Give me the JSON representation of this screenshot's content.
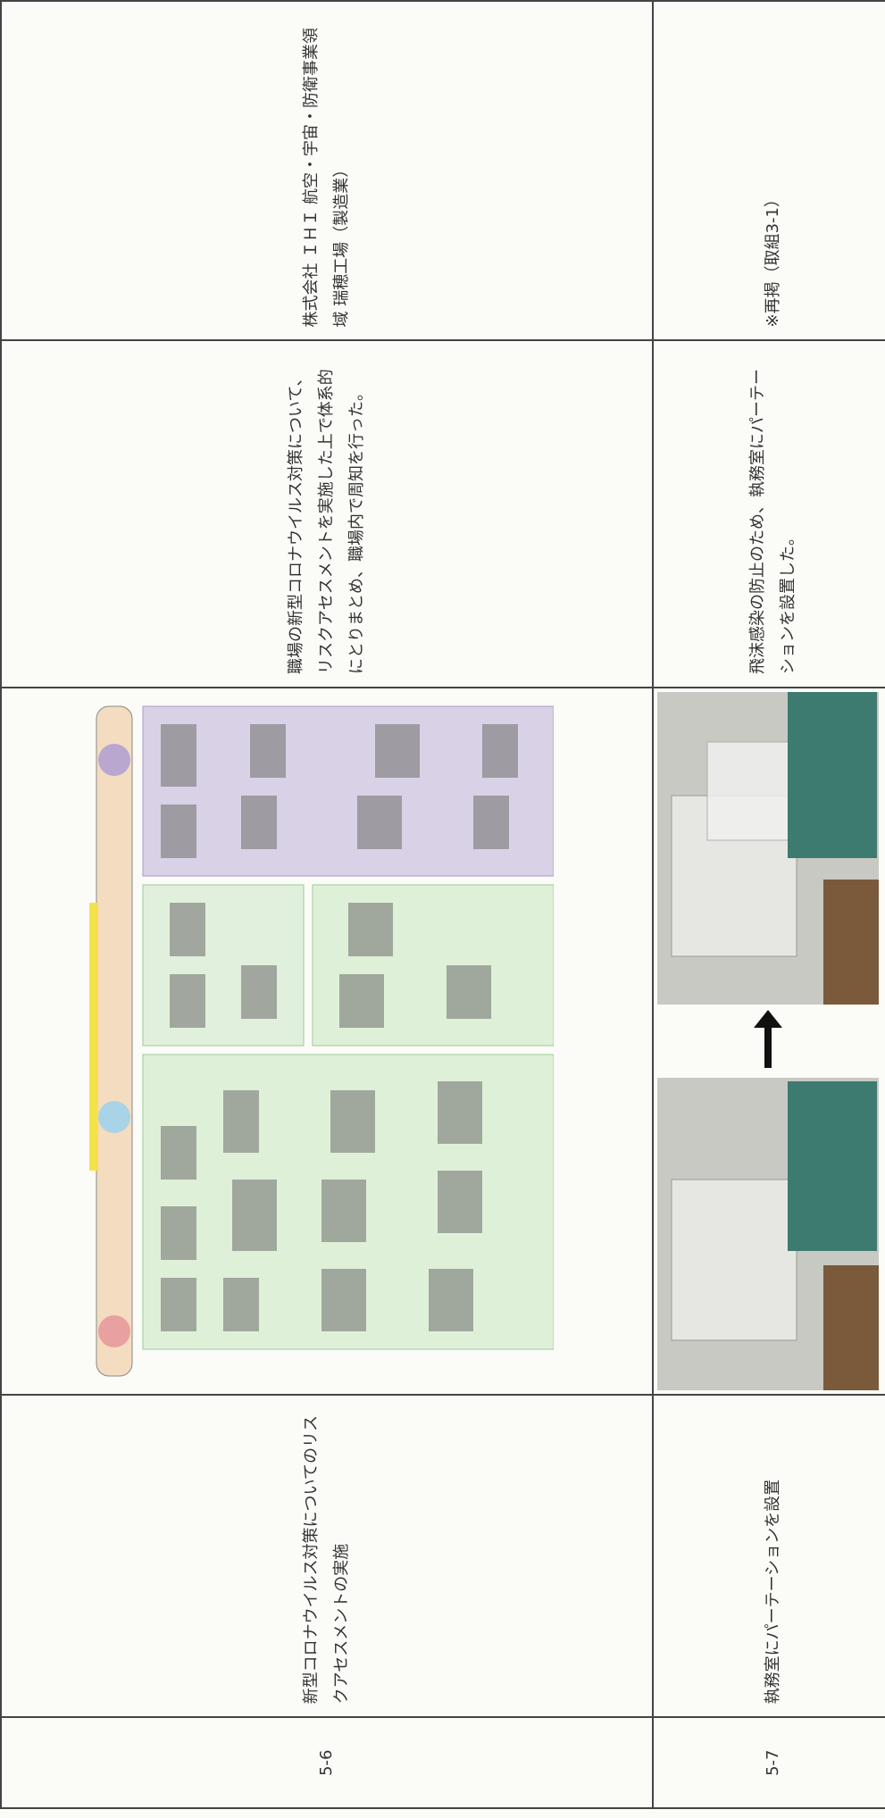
{
  "table": {
    "rows": [
      {
        "number": "5-6",
        "title": "新型コロナウイルス対策についてのリスクアセスメントの実施",
        "description": "職場の新型コロナウイルス対策について、リスクアセスメントを実施した上で体系的にとりまとめ、職場内で周知を行った。",
        "company": "株式会社 ＩＨＩ 航空・宇宙・防衛事業領域 瑞穂工場（製造業）"
      },
      {
        "number": "5-7",
        "title": "執務室にパーテーションを設置",
        "description": "飛沫感染の防止のため、執務室にパーテーションを設置した。",
        "note": "※再掲（取組3-1）"
      }
    ]
  }
}
